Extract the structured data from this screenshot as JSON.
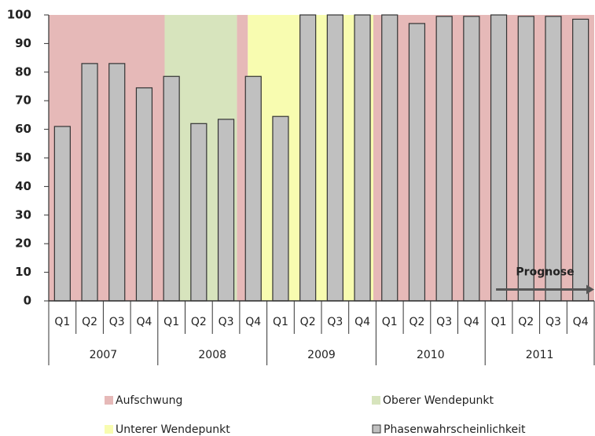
{
  "chart_data": {
    "type": "bar",
    "categories": [
      "Q1",
      "Q2",
      "Q3",
      "Q4",
      "Q1",
      "Q2",
      "Q3",
      "Q4",
      "Q1",
      "Q2",
      "Q3",
      "Q4",
      "Q1",
      "Q2",
      "Q3",
      "Q4",
      "Q1",
      "Q2",
      "Q3",
      "Q4"
    ],
    "years": [
      "2007",
      "2008",
      "2009",
      "2010",
      "2011"
    ],
    "series": [
      {
        "name": "Phasenwahrscheinlichkeit",
        "color": "#c0c0c0",
        "values": [
          61,
          83,
          83,
          74.5,
          78.5,
          62,
          63.5,
          78.5,
          64.5,
          100,
          100,
          100,
          100,
          97,
          99.5,
          99.5,
          100,
          99.5,
          99.5,
          98.5
        ]
      }
    ],
    "phases": [
      {
        "name": "Aufschwung",
        "color": "#e6b9b8",
        "spans": [
          [
            0,
            4.25
          ],
          [
            6.9,
            7.3
          ],
          [
            11.9,
            20
          ]
        ]
      },
      {
        "name": "Oberer Wendepunkt",
        "color": "#d7e4bd",
        "spans": [
          [
            4.25,
            6.9
          ]
        ]
      },
      {
        "name": "Unterer Wendepunkt",
        "color": "#f8fcb0",
        "spans": [
          [
            7.3,
            11.9
          ]
        ]
      }
    ],
    "annotation": {
      "text": "Prognose",
      "from": 16.4,
      "to": 20,
      "y": 4
    },
    "ylim": [
      0,
      100
    ],
    "yticks": [
      0,
      10,
      20,
      30,
      40,
      50,
      60,
      70,
      80,
      90,
      100
    ]
  }
}
